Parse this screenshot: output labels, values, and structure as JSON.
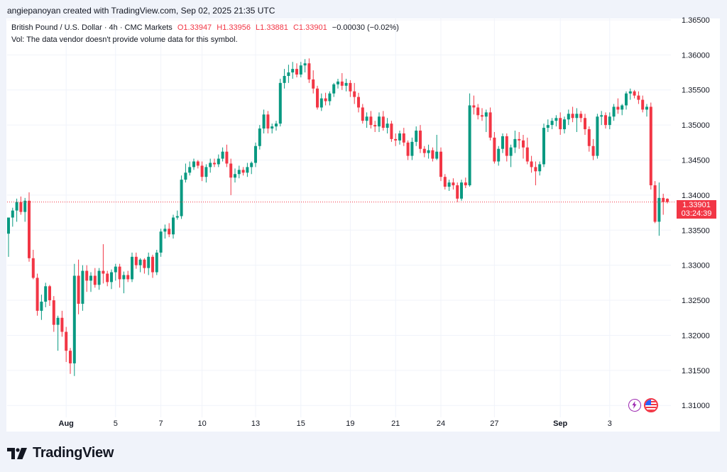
{
  "credit": "angiepanoyan created with TradingView.com, Sep 02, 2025 21:35 UTC",
  "legend": {
    "symbol": "British Pound / U.S. Dollar · 4h · CMC Markets",
    "open": "O1.33947",
    "high": "H1.33956",
    "low": "L1.33881",
    "close": "C1.33901",
    "change": "−0.00030 (−0.02%)",
    "vol": "Vol: The data vendor doesn't provide volume data for this symbol."
  },
  "price_tag": {
    "price": "1.33901",
    "countdown": "03:24:39"
  },
  "brand": "TradingView",
  "colors": {
    "up": "#089981",
    "down": "#f23645",
    "grid": "#f0f3fa",
    "last": "#f23645"
  },
  "icons": [
    "tradingview-logo-icon",
    "lightning-icon",
    "us-flag-icon"
  ],
  "chart_data": {
    "type": "candlestick",
    "title": "British Pound / U.S. Dollar · 4h · CMC Markets",
    "ylim": [
      1.3083,
      1.3652
    ],
    "y_ticks": [
      "1.31000",
      "1.31500",
      "1.32000",
      "1.32500",
      "1.33000",
      "1.33500",
      "1.34000",
      "1.34500",
      "1.35000",
      "1.35500",
      "1.36000",
      "1.36500"
    ],
    "x_ticks": [
      {
        "label": "Aug",
        "index": 14,
        "bold": true
      },
      {
        "label": "5",
        "index": 26
      },
      {
        "label": "7",
        "index": 37
      },
      {
        "label": "10",
        "index": 47
      },
      {
        "label": "13",
        "index": 60
      },
      {
        "label": "15",
        "index": 71
      },
      {
        "label": "19",
        "index": 83
      },
      {
        "label": "21",
        "index": 94
      },
      {
        "label": "24",
        "index": 105
      },
      {
        "label": "27",
        "index": 118
      },
      {
        "label": "Sep",
        "index": 134,
        "bold": true
      },
      {
        "label": "3",
        "index": 146
      }
    ],
    "last_price": 1.33901,
    "candles": [
      [
        1.3345,
        1.3368,
        1.3312,
        1.3368
      ],
      [
        1.3368,
        1.3382,
        1.3355,
        1.3378
      ],
      [
        1.3378,
        1.3395,
        1.3362,
        1.339
      ],
      [
        1.339,
        1.3398,
        1.3372,
        1.3376
      ],
      [
        1.3376,
        1.3396,
        1.3362,
        1.3392
      ],
      [
        1.3392,
        1.3404,
        1.3305,
        1.331
      ],
      [
        1.331,
        1.3322,
        1.328,
        1.3282
      ],
      [
        1.3282,
        1.3288,
        1.3228,
        1.3235
      ],
      [
        1.3235,
        1.3258,
        1.3222,
        1.3248
      ],
      [
        1.3248,
        1.3275,
        1.324,
        1.327
      ],
      [
        1.327,
        1.3272,
        1.3242,
        1.325
      ],
      [
        1.325,
        1.3256,
        1.3205,
        1.3215
      ],
      [
        1.3215,
        1.3228,
        1.3178,
        1.3225
      ],
      [
        1.3225,
        1.3235,
        1.3198,
        1.3205
      ],
      [
        1.3205,
        1.3212,
        1.3162,
        1.3178
      ],
      [
        1.3178,
        1.3182,
        1.3145,
        1.316
      ],
      [
        1.316,
        1.3302,
        1.3142,
        1.3285
      ],
      [
        1.3285,
        1.3308,
        1.323,
        1.3245
      ],
      [
        1.3245,
        1.33,
        1.3235,
        1.3292
      ],
      [
        1.3292,
        1.33,
        1.3262,
        1.3278
      ],
      [
        1.3278,
        1.329,
        1.3262,
        1.3285
      ],
      [
        1.3285,
        1.3296,
        1.3268,
        1.3272
      ],
      [
        1.3272,
        1.3296,
        1.3265,
        1.3292
      ],
      [
        1.3292,
        1.333,
        1.3274,
        1.3288
      ],
      [
        1.3288,
        1.3292,
        1.327,
        1.3276
      ],
      [
        1.3276,
        1.3294,
        1.3266,
        1.329
      ],
      [
        1.329,
        1.3302,
        1.3278,
        1.3298
      ],
      [
        1.3298,
        1.3302,
        1.3268,
        1.328
      ],
      [
        1.328,
        1.3291,
        1.326,
        1.3286
      ],
      [
        1.3286,
        1.3292,
        1.3276,
        1.328
      ],
      [
        1.328,
        1.3318,
        1.3276,
        1.3312
      ],
      [
        1.3312,
        1.3318,
        1.3295,
        1.33
      ],
      [
        1.33,
        1.331,
        1.329,
        1.3308
      ],
      [
        1.3308,
        1.331,
        1.3288,
        1.3296
      ],
      [
        1.3296,
        1.3318,
        1.3286,
        1.3312
      ],
      [
        1.3312,
        1.3315,
        1.3282,
        1.329
      ],
      [
        1.329,
        1.3322,
        1.3286,
        1.3318
      ],
      [
        1.3318,
        1.3352,
        1.3312,
        1.3348
      ],
      [
        1.3348,
        1.3358,
        1.3338,
        1.3352
      ],
      [
        1.3352,
        1.336,
        1.334,
        1.3344
      ],
      [
        1.3344,
        1.3372,
        1.3338,
        1.3368
      ],
      [
        1.3368,
        1.3378,
        1.3365,
        1.337
      ],
      [
        1.337,
        1.3428,
        1.3366,
        1.3422
      ],
      [
        1.3422,
        1.3445,
        1.3418,
        1.3432
      ],
      [
        1.3432,
        1.3448,
        1.3428,
        1.344
      ],
      [
        1.344,
        1.3452,
        1.3436,
        1.3448
      ],
      [
        1.3448,
        1.345,
        1.3438,
        1.3442
      ],
      [
        1.3442,
        1.3448,
        1.342,
        1.3426
      ],
      [
        1.3426,
        1.3444,
        1.3418,
        1.344
      ],
      [
        1.344,
        1.3452,
        1.3432,
        1.3446
      ],
      [
        1.3446,
        1.3452,
        1.344,
        1.3444
      ],
      [
        1.3444,
        1.3458,
        1.344,
        1.3452
      ],
      [
        1.3452,
        1.3468,
        1.3448,
        1.3462
      ],
      [
        1.3462,
        1.3472,
        1.344,
        1.3445
      ],
      [
        1.3445,
        1.3452,
        1.34,
        1.3425
      ],
      [
        1.3425,
        1.3438,
        1.3418,
        1.343
      ],
      [
        1.343,
        1.3442,
        1.3424,
        1.3436
      ],
      [
        1.3436,
        1.344,
        1.3428,
        1.3432
      ],
      [
        1.3432,
        1.3446,
        1.3426,
        1.344
      ],
      [
        1.344,
        1.3448,
        1.343,
        1.3446
      ],
      [
        1.3446,
        1.3475,
        1.344,
        1.347
      ],
      [
        1.347,
        1.35,
        1.3465,
        1.3495
      ],
      [
        1.3495,
        1.3522,
        1.3488,
        1.3515
      ],
      [
        1.3515,
        1.352,
        1.3488,
        1.3495
      ],
      [
        1.3495,
        1.3502,
        1.3488,
        1.3498
      ],
      [
        1.3498,
        1.3506,
        1.3492,
        1.3502
      ],
      [
        1.3502,
        1.3566,
        1.3498,
        1.356
      ],
      [
        1.356,
        1.358,
        1.3552,
        1.357
      ],
      [
        1.357,
        1.3586,
        1.356,
        1.3575
      ],
      [
        1.3575,
        1.359,
        1.3566,
        1.358
      ],
      [
        1.358,
        1.3588,
        1.3568,
        1.3572
      ],
      [
        1.3572,
        1.359,
        1.3568,
        1.3585
      ],
      [
        1.3585,
        1.3594,
        1.3575,
        1.3588
      ],
      [
        1.3588,
        1.3595,
        1.356,
        1.3565
      ],
      [
        1.3565,
        1.3578,
        1.3545,
        1.3552
      ],
      [
        1.3552,
        1.3556,
        1.3522,
        1.3525
      ],
      [
        1.3525,
        1.3545,
        1.352,
        1.3538
      ],
      [
        1.3538,
        1.3546,
        1.3528,
        1.3534
      ],
      [
        1.3534,
        1.3548,
        1.3528,
        1.3545
      ],
      [
        1.3545,
        1.356,
        1.354,
        1.3558
      ],
      [
        1.3558,
        1.3566,
        1.3552,
        1.3562
      ],
      [
        1.3562,
        1.3574,
        1.355,
        1.3556
      ],
      [
        1.3556,
        1.3566,
        1.3548,
        1.356
      ],
      [
        1.356,
        1.3564,
        1.354,
        1.3548
      ],
      [
        1.3548,
        1.356,
        1.353,
        1.354
      ],
      [
        1.354,
        1.3546,
        1.3518,
        1.3525
      ],
      [
        1.3525,
        1.353,
        1.3502,
        1.3506
      ],
      [
        1.3506,
        1.3518,
        1.3496,
        1.3512
      ],
      [
        1.3512,
        1.352,
        1.3495,
        1.35
      ],
      [
        1.35,
        1.3506,
        1.349,
        1.3498
      ],
      [
        1.3498,
        1.3518,
        1.349,
        1.3512
      ],
      [
        1.3512,
        1.352,
        1.3492,
        1.3496
      ],
      [
        1.3496,
        1.351,
        1.3488,
        1.3502
      ],
      [
        1.3502,
        1.3506,
        1.3476,
        1.348
      ],
      [
        1.348,
        1.3488,
        1.347,
        1.3478
      ],
      [
        1.3478,
        1.3492,
        1.3472,
        1.3488
      ],
      [
        1.3488,
        1.3496,
        1.347,
        1.3475
      ],
      [
        1.3475,
        1.3478,
        1.345,
        1.3456
      ],
      [
        1.3456,
        1.3482,
        1.345,
        1.3476
      ],
      [
        1.3476,
        1.3498,
        1.347,
        1.3492
      ],
      [
        1.3492,
        1.35,
        1.346,
        1.3466
      ],
      [
        1.3466,
        1.347,
        1.3454,
        1.346
      ],
      [
        1.346,
        1.3472,
        1.3452,
        1.3464
      ],
      [
        1.3464,
        1.3468,
        1.3448,
        1.3452
      ],
      [
        1.3452,
        1.3486,
        1.345,
        1.3462
      ],
      [
        1.3462,
        1.3468,
        1.342,
        1.3426
      ],
      [
        1.3426,
        1.343,
        1.3408,
        1.3412
      ],
      [
        1.3412,
        1.3422,
        1.3406,
        1.3418
      ],
      [
        1.3418,
        1.3424,
        1.3408,
        1.3414
      ],
      [
        1.3414,
        1.3418,
        1.339,
        1.3395
      ],
      [
        1.3395,
        1.3422,
        1.3392,
        1.3418
      ],
      [
        1.3418,
        1.3425,
        1.341,
        1.3414
      ],
      [
        1.3414,
        1.3545,
        1.3412,
        1.3528
      ],
      [
        1.3528,
        1.3542,
        1.3515,
        1.3525
      ],
      [
        1.3525,
        1.353,
        1.3508,
        1.3514
      ],
      [
        1.3514,
        1.3524,
        1.3506,
        1.3512
      ],
      [
        1.3512,
        1.3522,
        1.349,
        1.3518
      ],
      [
        1.3518,
        1.3525,
        1.3478,
        1.3482
      ],
      [
        1.3482,
        1.349,
        1.3445,
        1.3448
      ],
      [
        1.3448,
        1.347,
        1.3442,
        1.3466
      ],
      [
        1.3466,
        1.3488,
        1.346,
        1.3484
      ],
      [
        1.3484,
        1.3488,
        1.3448,
        1.3456
      ],
      [
        1.3456,
        1.3472,
        1.344,
        1.3468
      ],
      [
        1.3468,
        1.3492,
        1.346,
        1.348
      ],
      [
        1.348,
        1.349,
        1.3466,
        1.3478
      ],
      [
        1.3478,
        1.3486,
        1.3452,
        1.3468
      ],
      [
        1.3468,
        1.3482,
        1.3444,
        1.3448
      ],
      [
        1.3448,
        1.3456,
        1.3432,
        1.344
      ],
      [
        1.344,
        1.3448,
        1.3414,
        1.3434
      ],
      [
        1.3434,
        1.3448,
        1.3428,
        1.3444
      ],
      [
        1.3444,
        1.3502,
        1.344,
        1.3496
      ],
      [
        1.3496,
        1.3508,
        1.349,
        1.35
      ],
      [
        1.35,
        1.351,
        1.3494,
        1.3506
      ],
      [
        1.3506,
        1.3514,
        1.3498,
        1.351
      ],
      [
        1.351,
        1.3518,
        1.3486,
        1.3494
      ],
      [
        1.3494,
        1.3512,
        1.3488,
        1.3508
      ],
      [
        1.3508,
        1.3522,
        1.35,
        1.3516
      ],
      [
        1.3516,
        1.3526,
        1.3504,
        1.351
      ],
      [
        1.351,
        1.3524,
        1.349,
        1.3516
      ],
      [
        1.3516,
        1.352,
        1.3504,
        1.351
      ],
      [
        1.351,
        1.3516,
        1.3486,
        1.3494
      ],
      [
        1.3494,
        1.3498,
        1.3462,
        1.347
      ],
      [
        1.347,
        1.348,
        1.345,
        1.3456
      ],
      [
        1.3456,
        1.3516,
        1.3452,
        1.3512
      ],
      [
        1.3512,
        1.352,
        1.35,
        1.3514
      ],
      [
        1.3514,
        1.3518,
        1.3495,
        1.35
      ],
      [
        1.35,
        1.3518,
        1.3494,
        1.3512
      ],
      [
        1.3512,
        1.353,
        1.3506,
        1.3526
      ],
      [
        1.3526,
        1.3538,
        1.3516,
        1.3522
      ],
      [
        1.3522,
        1.353,
        1.3514,
        1.3528
      ],
      [
        1.3528,
        1.3548,
        1.3522,
        1.3545
      ],
      [
        1.3545,
        1.3552,
        1.3536,
        1.3548
      ],
      [
        1.3548,
        1.355,
        1.3538,
        1.3542
      ],
      [
        1.3542,
        1.3548,
        1.353,
        1.3536
      ],
      [
        1.3536,
        1.3542,
        1.3518,
        1.3522
      ],
      [
        1.3522,
        1.353,
        1.3512,
        1.3526
      ],
      [
        1.3526,
        1.3532,
        1.3408,
        1.3414
      ],
      [
        1.3414,
        1.342,
        1.336,
        1.3362
      ],
      [
        1.3362,
        1.3418,
        1.3342,
        1.3396
      ],
      [
        1.3396,
        1.3402,
        1.3372,
        1.339
      ],
      [
        1.33947,
        1.33956,
        1.33881,
        1.33901
      ]
    ]
  }
}
